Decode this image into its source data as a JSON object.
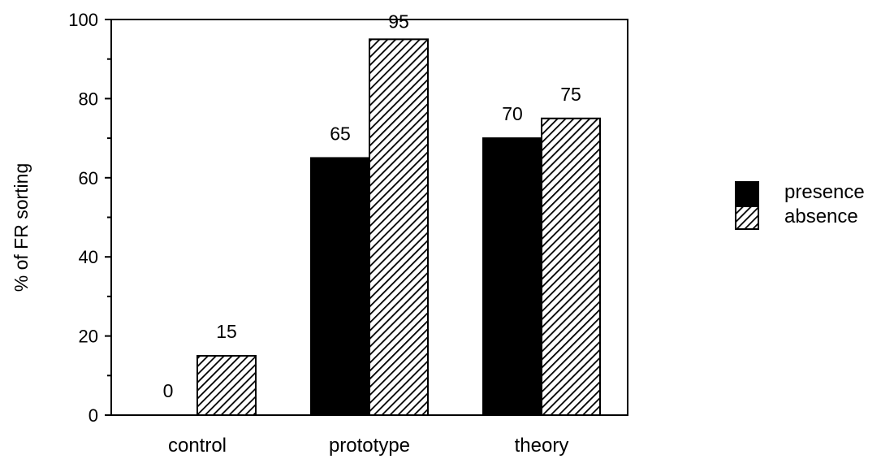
{
  "chart_data": {
    "type": "bar",
    "title": "",
    "xlabel": "",
    "ylabel": "% of FR sorting",
    "ylim": [
      0,
      100
    ],
    "yticks": [
      0,
      20,
      40,
      60,
      80,
      100
    ],
    "categories": [
      "control",
      "prototype",
      "theory"
    ],
    "series": [
      {
        "name": "presence",
        "values": [
          0,
          65,
          70
        ],
        "fill": "solid",
        "color": "#000000"
      },
      {
        "name": "absence",
        "values": [
          15,
          95,
          75
        ],
        "fill": "hatched",
        "color": "#000000"
      }
    ],
    "data_labels": true,
    "grid": false,
    "legend_position": "right"
  }
}
